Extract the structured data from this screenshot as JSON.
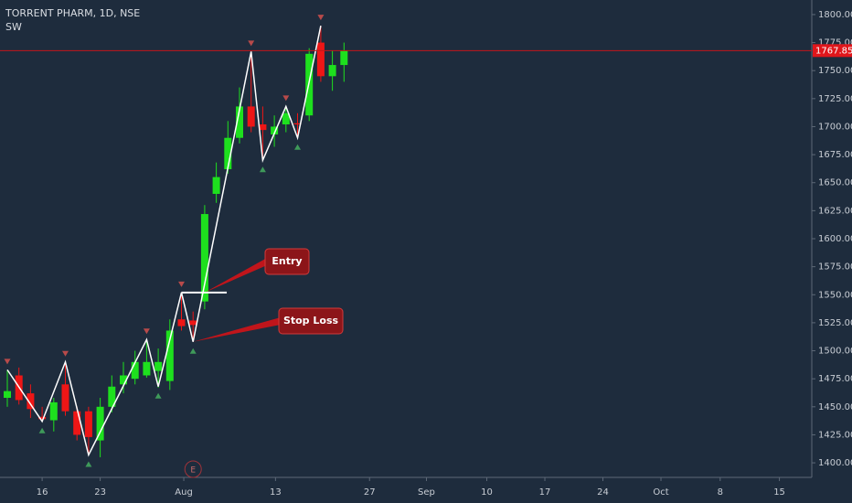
{
  "chart_data": {
    "type": "candlestick",
    "title": "TORRENT PHARM, 1D, NSE",
    "subtitle": "SW",
    "up_color": "#1ee01e",
    "down_color": "#ee1616",
    "open": [
      1458,
      1478,
      1462,
      1441,
      1438,
      1470,
      1446,
      1446,
      1420,
      1450,
      1470,
      1475,
      1478,
      1482,
      1473,
      1528,
      1527,
      1544,
      1640,
      1662,
      1690,
      1718,
      1702,
      1693,
      1702,
      1703,
      1710,
      1775,
      1745,
      1755
    ],
    "close": [
      1464,
      1456,
      1448,
      1439,
      1454,
      1446,
      1425,
      1423,
      1450,
      1468,
      1478,
      1490,
      1490,
      1490,
      1518,
      1522,
      1523,
      1622,
      1655,
      1690,
      1718,
      1700,
      1697,
      1700,
      1712,
      1702,
      1765,
      1745,
      1755,
      1767.85
    ],
    "high": [
      1483,
      1485,
      1470,
      1450,
      1458,
      1490,
      1450,
      1450,
      1458,
      1478,
      1490,
      1500,
      1510,
      1502,
      1528,
      1552,
      1535,
      1630,
      1668,
      1705,
      1735,
      1767,
      1718,
      1710,
      1718,
      1712,
      1770,
      1790,
      1768,
      1775
    ],
    "low": [
      1450,
      1452,
      1440,
      1437,
      1428,
      1442,
      1420,
      1407,
      1405,
      1445,
      1462,
      1470,
      1476,
      1467,
      1465,
      1518,
      1508,
      1537,
      1632,
      1658,
      1685,
      1695,
      1670,
      1682,
      1695,
      1690,
      1705,
      1740,
      1732,
      1740
    ],
    "zigzag": [
      {
        "x": 0,
        "y": 1483
      },
      {
        "x": 3,
        "y": 1437
      },
      {
        "x": 5,
        "y": 1490
      },
      {
        "x": 7,
        "y": 1407
      },
      {
        "x": 12,
        "y": 1510
      },
      {
        "x": 13,
        "y": 1468
      },
      {
        "x": 15,
        "y": 1552
      },
      {
        "x": 16,
        "y": 1508
      },
      {
        "x": 21,
        "y": 1767
      },
      {
        "x": 22,
        "y": 1670
      },
      {
        "x": 24,
        "y": 1718
      },
      {
        "x": 25,
        "y": 1690
      },
      {
        "x": 27,
        "y": 1790
      }
    ],
    "annotations": [
      {
        "text": "Entry",
        "value": 1552
      },
      {
        "text": "Stop Loss",
        "value": 1508
      }
    ],
    "events": [
      {
        "x": 16,
        "label": "E"
      }
    ],
    "xlim": [
      -0.63,
      69.29
    ],
    "ylim": [
      1387,
      1813
    ],
    "xticks": [
      {
        "value": 3,
        "label": "16"
      },
      {
        "value": 8,
        "label": "23"
      },
      {
        "value": 15.2,
        "label": "Aug"
      },
      {
        "value": 23.1,
        "label": "13"
      },
      {
        "value": 31.2,
        "label": "27"
      },
      {
        "value": 36.1,
        "label": "Sep"
      },
      {
        "value": 41.3,
        "label": "10"
      },
      {
        "value": 46.3,
        "label": "17"
      },
      {
        "value": 51.3,
        "label": "24"
      },
      {
        "value": 56.3,
        "label": "Oct"
      },
      {
        "value": 61.4,
        "label": "8"
      },
      {
        "value": 66.5,
        "label": "15"
      }
    ],
    "yticks": [
      {
        "value": 1400,
        "label": "1400.00"
      },
      {
        "value": 1425,
        "label": "1425.00"
      },
      {
        "value": 1450,
        "label": "1450.00"
      },
      {
        "value": 1475,
        "label": "1475.00"
      },
      {
        "value": 1500,
        "label": "1500.00"
      },
      {
        "value": 1525,
        "label": "1525.00"
      },
      {
        "value": 1550,
        "label": "1550.00"
      },
      {
        "value": 1575,
        "label": "1575.00"
      },
      {
        "value": 1600,
        "label": "1600.00"
      },
      {
        "value": 1625,
        "label": "1625.00"
      },
      {
        "value": 1650,
        "label": "1650.00"
      },
      {
        "value": 1675,
        "label": "1675.00"
      },
      {
        "value": 1700,
        "label": "1700.00"
      },
      {
        "value": 1725,
        "label": "1725.00"
      },
      {
        "value": 1750,
        "label": "1750.00"
      },
      {
        "value": 1775,
        "label": "1775.00"
      },
      {
        "value": 1800,
        "label": "1800.00"
      }
    ]
  }
}
